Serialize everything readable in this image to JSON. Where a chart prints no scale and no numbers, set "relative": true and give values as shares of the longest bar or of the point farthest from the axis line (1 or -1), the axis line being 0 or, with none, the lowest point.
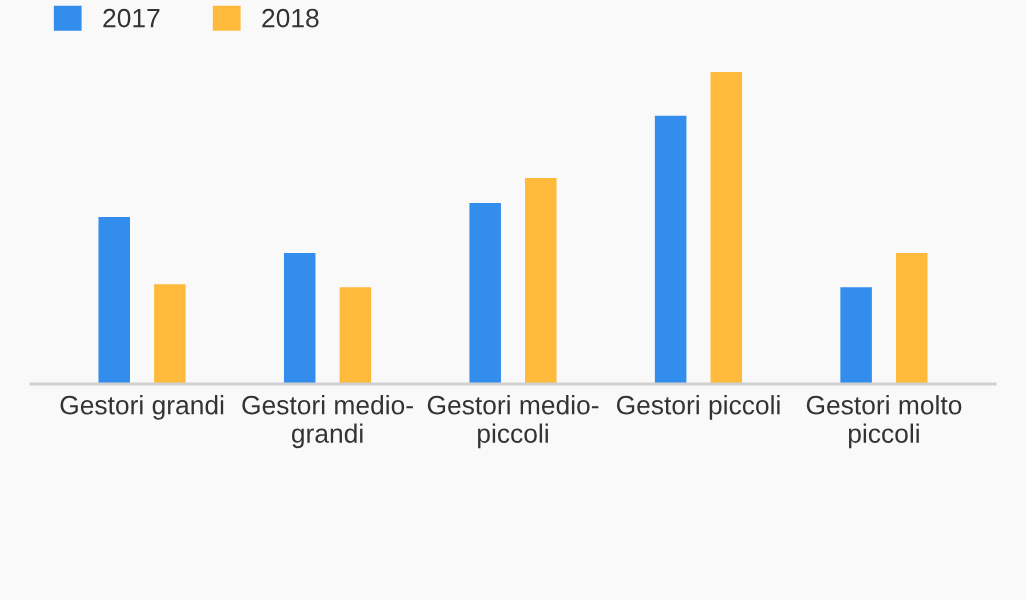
{
  "chart_data": {
    "type": "bar",
    "relative": true,
    "categories": [
      "Gestori grandi",
      "Gestori medio-\ngrandi",
      "Gestori medio-\npiccoli",
      "Gestori piccoli",
      "Gestori molto\npiccoli"
    ],
    "series": [
      {
        "name": "2017",
        "color": "#338ded",
        "values": [
          0.535,
          0.42,
          0.58,
          0.86,
          0.31
        ]
      },
      {
        "name": "2018",
        "color": "#ffb93b",
        "values": [
          0.32,
          0.31,
          0.66,
          1.0,
          0.42
        ]
      }
    ],
    "legend": "top left",
    "grid": false
  }
}
